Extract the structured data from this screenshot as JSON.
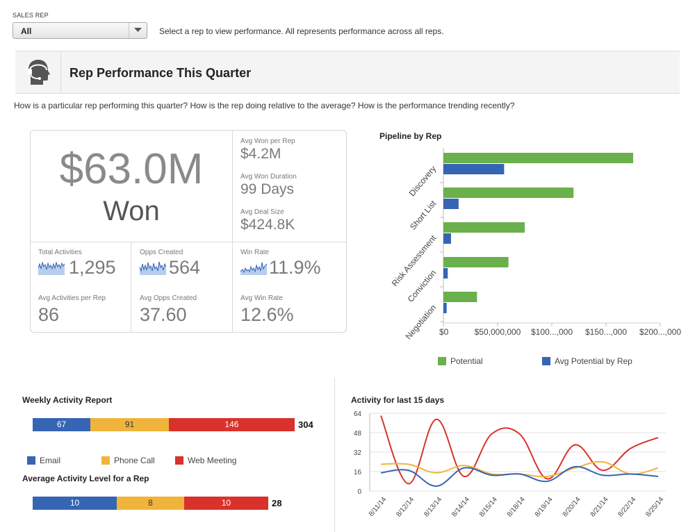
{
  "rep_filter": {
    "label": "SALES REP",
    "selected": "All",
    "help": "Select a rep to view performance.  All represents performance across all reps."
  },
  "header": {
    "title": "Rep Performance This Quarter",
    "subtitle": "How is a particular rep performing this quarter?  How is the rep doing relative to the average?  How is the performance trending recently?"
  },
  "kpis": {
    "won_value": "$63.0M",
    "won_label": "Won",
    "avg_won_per_rep_label": "Avg Won per Rep",
    "avg_won_per_rep": "$4.2M",
    "avg_won_duration_label": "Avg Won Duration",
    "avg_won_duration": "99 Days",
    "avg_deal_size_label": "Avg Deal Size",
    "avg_deal_size": "$424.8K",
    "total_activities_label": "Total Activities",
    "total_activities": "1,295",
    "opps_created_label": "Opps Created",
    "opps_created": "564",
    "win_rate_label": "Win Rate",
    "win_rate": "11.9%",
    "avg_activities_per_rep_label": "Avg Activities per Rep",
    "avg_activities_per_rep": "86",
    "avg_opps_created_label": "Avg Opps Created",
    "avg_opps_created": "37.60",
    "avg_win_rate_label": "Avg Win Rate",
    "avg_win_rate": "12.6%"
  },
  "colors": {
    "green": "#6ab04c",
    "blue": "#3565b3",
    "orange": "#f0b43c",
    "red": "#d9312b",
    "spark": "#2d5fb0"
  },
  "chart_data": [
    {
      "type": "bar",
      "orientation": "horizontal",
      "title": "Pipeline by Rep",
      "categories": [
        "Discovery",
        "Short List",
        "Risk Assessment",
        "Conviction",
        "Negotiation"
      ],
      "series": [
        {
          "name": "Potential",
          "values": [
            175000000,
            120000000,
            75000000,
            60000000,
            31000000
          ]
        },
        {
          "name": "Avg Potential by Rep",
          "values": [
            56000000,
            14000000,
            7000000,
            4000000,
            3000000
          ]
        }
      ],
      "x_ticks": [
        "$0",
        "$50,000,000",
        "$100...,000",
        "$150...,000",
        "$200...,000"
      ],
      "xlim": [
        0,
        200000000
      ],
      "legend": "bottom"
    },
    {
      "type": "bar",
      "orientation": "horizontal-stacked",
      "title": "Weekly Activity Report",
      "series": [
        {
          "name": "Email",
          "values": [
            67
          ]
        },
        {
          "name": "Phone Call",
          "values": [
            91
          ]
        },
        {
          "name": "Web Meeting",
          "values": [
            146
          ]
        }
      ],
      "total": "304",
      "legend": "bottom"
    },
    {
      "type": "bar",
      "orientation": "horizontal-stacked",
      "title": "Average Activity Level for a Rep",
      "series": [
        {
          "name": "Email",
          "values": [
            10
          ]
        },
        {
          "name": "Phone Call",
          "values": [
            8
          ]
        },
        {
          "name": "Web Meeting",
          "values": [
            10
          ]
        }
      ],
      "total": "28"
    },
    {
      "type": "line",
      "title": "Activity for last 15 days",
      "x": [
        "8/11/14",
        "8/12/14",
        "8/13/14",
        "8/14/14",
        "8/15/14",
        "8/18/14",
        "8/19/14",
        "8/20/14",
        "8/21/14",
        "8/22/14",
        "8/25/14"
      ],
      "series": [
        {
          "name": "Web Meeting",
          "values": [
            62,
            6,
            59,
            12,
            47,
            47,
            10,
            38,
            17,
            35,
            44
          ]
        },
        {
          "name": "Phone Call",
          "values": [
            22,
            22,
            15,
            21,
            14,
            14,
            12,
            19,
            24,
            14,
            19
          ]
        },
        {
          "name": "Email",
          "values": [
            15,
            17,
            4,
            19,
            13,
            14,
            8,
            20,
            13,
            14,
            12
          ]
        }
      ],
      "y_ticks": [
        "0",
        "16",
        "32",
        "48",
        "64"
      ],
      "ylim": [
        0,
        64
      ],
      "grid": true
    }
  ]
}
